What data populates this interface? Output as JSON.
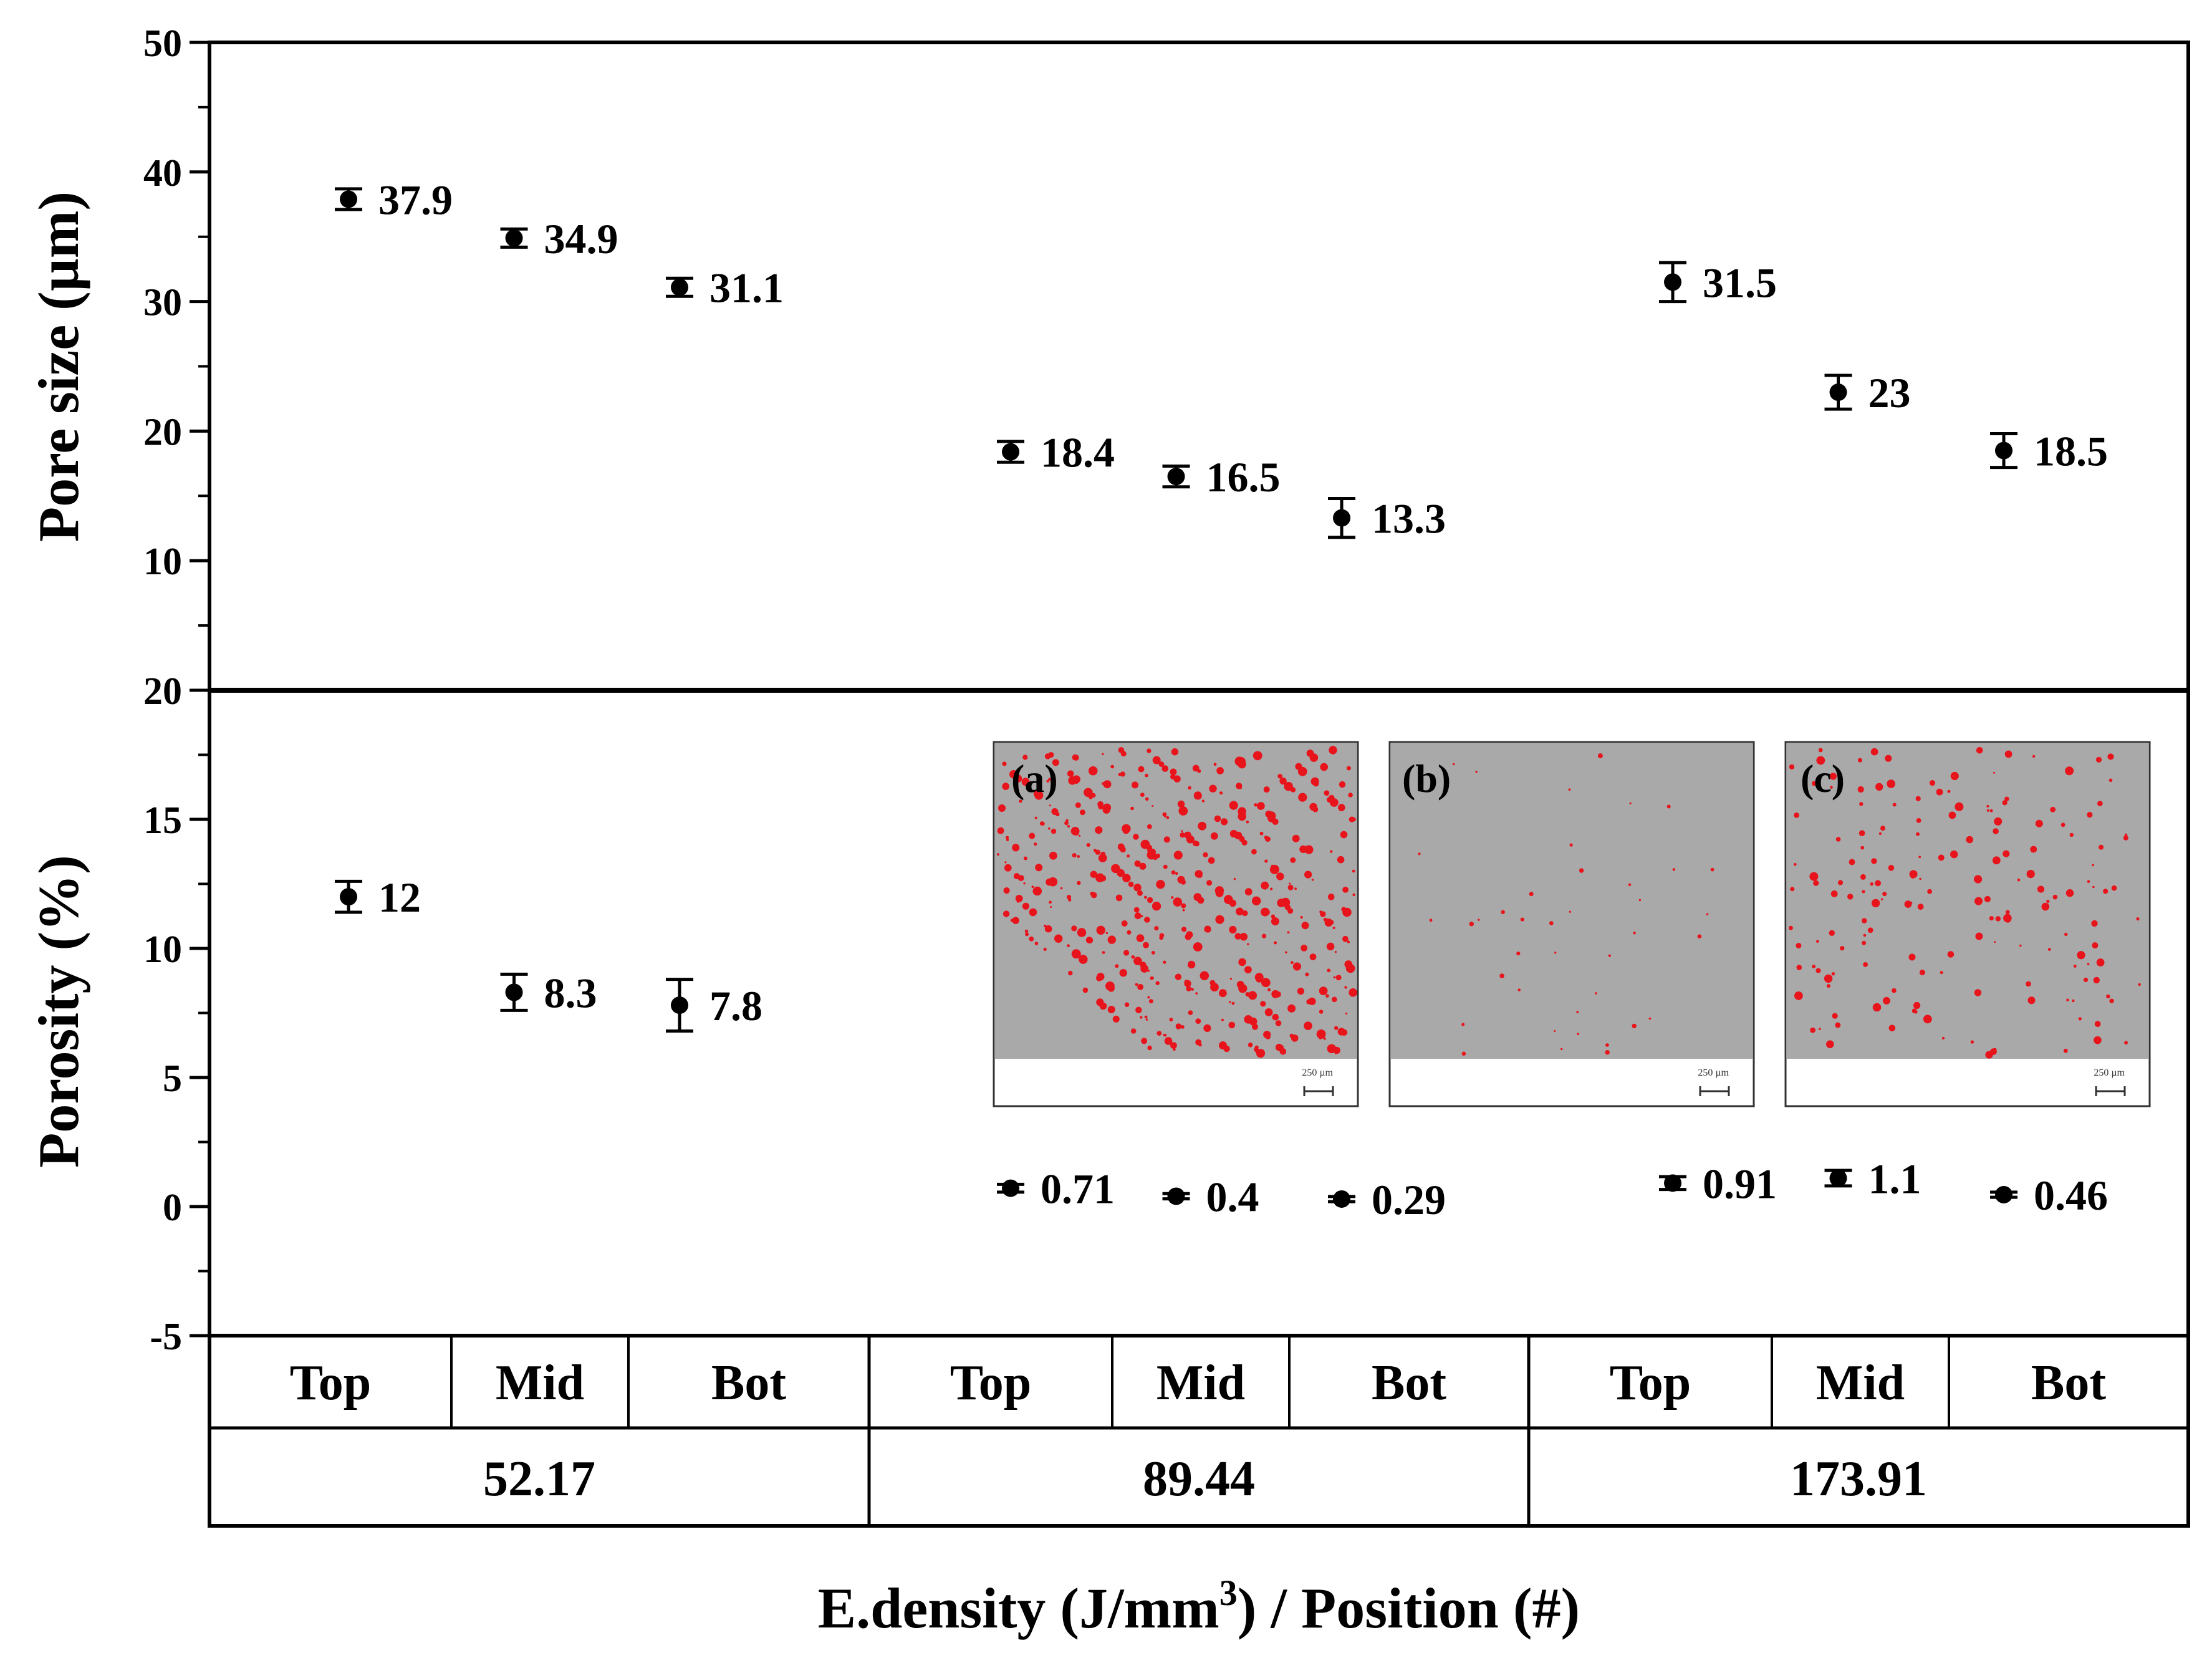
{
  "chart_data": [
    {
      "type": "scatter",
      "panel": "top",
      "ylabel": "Pore size (µm)",
      "ylim": [
        0,
        50
      ],
      "yticks": [
        10,
        20,
        30,
        40,
        50
      ],
      "yticks_labeled": [
        "10",
        "20",
        "30",
        "40",
        "50"
      ],
      "x": [
        1,
        2,
        3,
        5,
        6,
        7,
        9,
        10,
        11
      ],
      "values": [
        37.9,
        34.9,
        31.1,
        18.4,
        16.5,
        13.3,
        31.5,
        23,
        18.5
      ],
      "errors": [
        0.8,
        0.7,
        0.7,
        0.8,
        0.8,
        1.5,
        1.5,
        1.3,
        1.3
      ],
      "labels": [
        "37.9",
        "34.9",
        "31.1",
        "18.4",
        "16.5",
        "13.3",
        "31.5",
        "23",
        "18.5"
      ]
    },
    {
      "type": "scatter",
      "panel": "bottom",
      "ylabel": "Porosity (%)",
      "ylim": [
        -5,
        20
      ],
      "yticks": [
        -5,
        0,
        5,
        10,
        15,
        20
      ],
      "yticks_labeled": [
        "-5",
        "0",
        "5",
        "10",
        "15",
        "20"
      ],
      "x": [
        1,
        2,
        3,
        5,
        6,
        7,
        9,
        10,
        11
      ],
      "values": [
        12,
        8.3,
        7.8,
        0.71,
        0.4,
        0.29,
        0.91,
        1.1,
        0.46
      ],
      "errors": [
        0.6,
        0.7,
        1.0,
        0.15,
        0.1,
        0.1,
        0.25,
        0.3,
        0.1
      ],
      "labels": [
        "12",
        "8.3",
        "7.8",
        "0.71",
        "0.4",
        "0.29",
        "0.91",
        "1.1",
        "0.46"
      ]
    }
  ],
  "x_table": {
    "positions": [
      "Top",
      "Mid",
      "Bot",
      "Top",
      "Mid",
      "Bot",
      "Top",
      "Mid",
      "Bot"
    ],
    "densities": [
      "52.17",
      "89.44",
      "173.91"
    ]
  },
  "xlabel_main": "E.density (J/mm",
  "xlabel_sup": "3",
  "xlabel_tail": ") / Position (#)",
  "insets": [
    {
      "label": "(a)",
      "scale": "250 µm"
    },
    {
      "label": "(b)",
      "scale": "250 µm"
    },
    {
      "label": "(c)",
      "scale": "250 µm"
    }
  ],
  "colors": {
    "pore": "#e8141c",
    "micro_bg": "#a9a9a9",
    "ink": "#000000"
  }
}
